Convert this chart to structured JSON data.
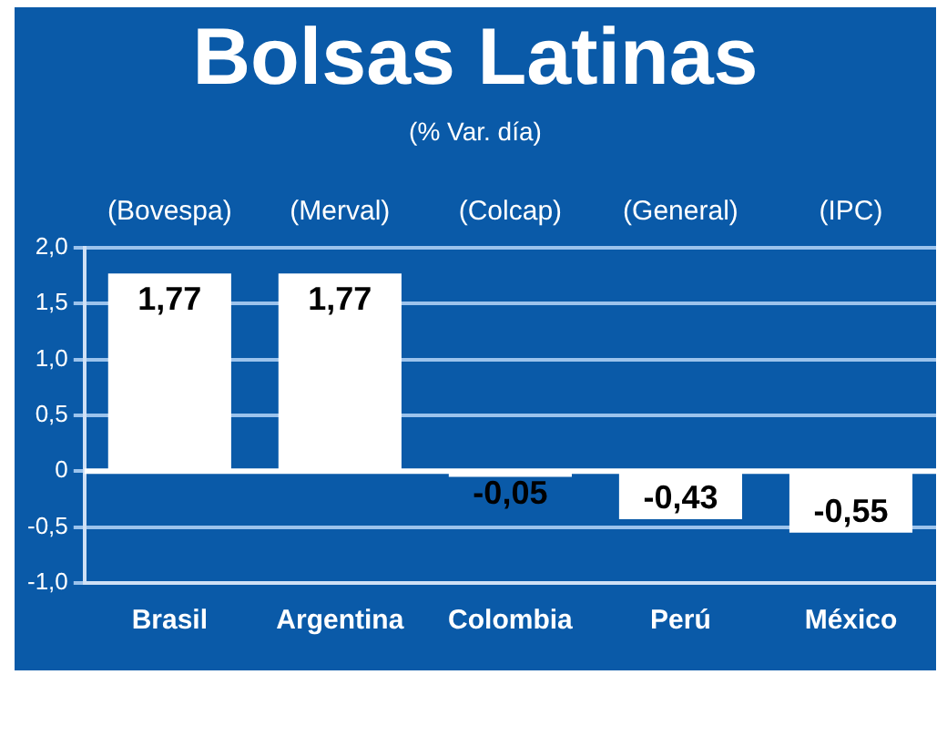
{
  "chart_data": {
    "type": "bar",
    "title": "Bolsas Latinas",
    "subtitle": "(% Var. día)",
    "categories": [
      "Brasil",
      "Argentina",
      "Colombia",
      "Perú",
      "México"
    ],
    "values": [
      1.77,
      1.77,
      -0.05,
      -0.43,
      -0.55
    ],
    "value_labels": [
      "1,77",
      "1,77",
      "-0,05",
      "-0,43",
      "-0,55"
    ],
    "color": "#ffffff",
    "ylim": [
      -1,
      2
    ],
    "yticks": [
      {
        "value": -1,
        "label": "-1,0"
      },
      {
        "value": -0.5,
        "label": "-0,5"
      },
      0,
      {
        "value": 0.5,
        "label": "0,5"
      },
      {
        "value": 1,
        "label": "1,0"
      },
      {
        "value": 1.5,
        "label": "1,5"
      },
      {
        "value": 2,
        "label": "2,0"
      }
    ],
    "grid": "y",
    "annotations": [
      "(Bovespa)",
      "(Merval)",
      "(Colcap)",
      "(General)",
      "(IPC)"
    ]
  }
}
